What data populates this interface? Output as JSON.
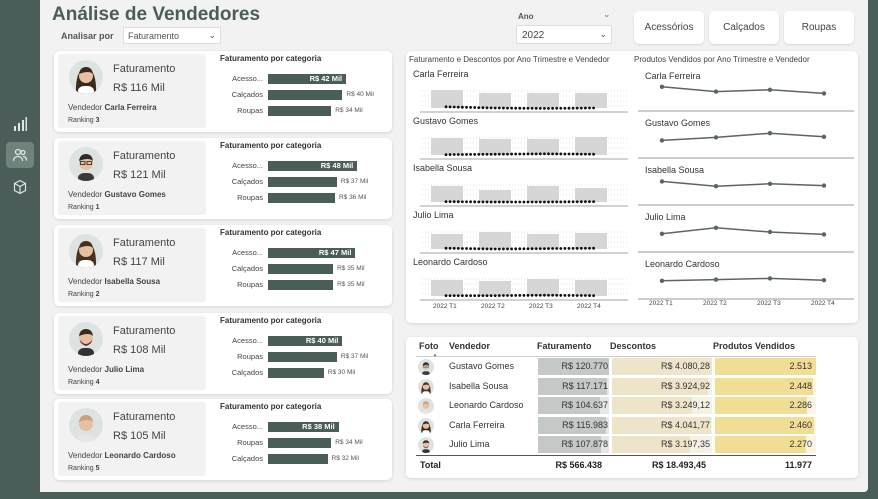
{
  "title": "Análise de Vendedores",
  "analisar_por": {
    "label": "Analisar por",
    "value": "Faturamento"
  },
  "ano": {
    "label": "Ano",
    "value": "2022"
  },
  "category_buttons": [
    "Acessórios",
    "Calçados",
    "Roupas"
  ],
  "colors": {
    "primary": "#4a5d58",
    "background": "#f2f2f2",
    "desc_bar": "#ede4c9",
    "prod_bar": "#f2dd95",
    "fat_bar": "#c4c8c6"
  },
  "sidebar_icons": [
    "bar-chart-icon",
    "users-icon",
    "cube-icon"
  ],
  "card_labels": {
    "faturamento": "Faturamento",
    "vendedor": "Vendedor",
    "ranking": "Ranking",
    "categoria_title": "Faturamento por categoria"
  },
  "cards": [
    {
      "name": "Carla Ferreira",
      "value": "R$ 116 Mil",
      "ranking": "3",
      "categories": [
        {
          "label": "Acesso...",
          "value": "R$ 42 Mil",
          "num": 42
        },
        {
          "label": "Calçados",
          "value": "R$ 40 Mil",
          "num": 40
        },
        {
          "label": "Roupas",
          "value": "R$ 34 Mil",
          "num": 34
        }
      ]
    },
    {
      "name": "Gustavo Gomes",
      "value": "R$ 121 Mil",
      "ranking": "1",
      "categories": [
        {
          "label": "Acesso...",
          "value": "R$ 48 Mil",
          "num": 48
        },
        {
          "label": "Calçados",
          "value": "R$ 37 Mil",
          "num": 37
        },
        {
          "label": "Roupas",
          "value": "R$ 36 Mil",
          "num": 36
        }
      ]
    },
    {
      "name": "Isabella Sousa",
      "value": "R$ 117 Mil",
      "ranking": "2",
      "categories": [
        {
          "label": "Acesso...",
          "value": "R$ 47 Mil",
          "num": 47
        },
        {
          "label": "Calçados",
          "value": "R$ 35 Mil",
          "num": 35
        },
        {
          "label": "Roupas",
          "value": "R$ 35 Mil",
          "num": 35
        }
      ]
    },
    {
      "name": "Julio Lima",
      "value": "R$ 108 Mil",
      "ranking": "4",
      "categories": [
        {
          "label": "Acesso...",
          "value": "R$ 40 Mil",
          "num": 40
        },
        {
          "label": "Roupas",
          "value": "R$ 37 Mil",
          "num": 37
        },
        {
          "label": "Calçados",
          "value": "R$ 30 Mil",
          "num": 30
        }
      ]
    },
    {
      "name": "Leonardo Cardoso",
      "value": "R$ 105 Mil",
      "ranking": "5",
      "categories": [
        {
          "label": "Acesso...",
          "value": "R$ 38 Mil",
          "num": 38
        },
        {
          "label": "Roupas",
          "value": "R$ 34 Mil",
          "num": 34
        },
        {
          "label": "Calçados",
          "value": "R$ 32 Mil",
          "num": 32
        }
      ]
    }
  ],
  "chart_data": [
    {
      "type": "bar",
      "title": "Faturamento e Descontos por Ano Trimestre e Vendedor",
      "categories": [
        "2022 T1",
        "2022 T2",
        "2022 T3",
        "2022 T4"
      ],
      "panels": [
        "Carla Ferreira",
        "Gustavo Gomes",
        "Isabella Sousa",
        "Julio Lima",
        "Leonardo Cardoso"
      ],
      "series": [
        {
          "values": [
            [
              0.9,
              0.75,
              0.75,
              0.75
            ],
            [
              0.85,
              0.8,
              0.8,
              0.9
            ],
            [
              0.8,
              0.6,
              0.8,
              0.7
            ],
            [
              0.75,
              0.85,
              0.75,
              0.8
            ],
            [
              0.8,
              0.75,
              0.85,
              0.8
            ]
          ]
        },
        {
          "values": [
            [
              0.18,
              0.15,
              0.14,
              0.15
            ],
            [
              0.16,
              0.17,
              0.18,
              0.17
            ],
            [
              0.16,
              0.15,
              0.15,
              0.16
            ],
            [
              0.17,
              0.15,
              0.16,
              0.17
            ],
            [
              0.16,
              0.16,
              0.17,
              0.16
            ]
          ]
        }
      ],
      "ylim": [
        0,
        1
      ]
    },
    {
      "type": "line",
      "title": "Produtos Vendidos por Ano Trimestre e Vendedor",
      "categories": [
        "2022 T1",
        "2022 T2",
        "2022 T3",
        "2022 T4"
      ],
      "panels": [
        "Carla Ferreira",
        "Gustavo Gomes",
        "Isabella Sousa",
        "Julio Lima",
        "Leonardo Cardoso"
      ],
      "series": [
        {
          "values": [
            [
              0.85,
              0.45,
              0.6,
              0.3
            ],
            [
              0.3,
              0.55,
              0.9,
              0.6
            ],
            [
              0.8,
              0.4,
              0.6,
              0.45
            ],
            [
              0.35,
              0.85,
              0.5,
              0.3
            ],
            [
              0.35,
              0.45,
              0.55,
              0.4
            ]
          ]
        }
      ],
      "ylim": [
        0,
        1
      ]
    }
  ],
  "table": {
    "headers": {
      "foto": "Foto",
      "vendedor": "Vendedor",
      "faturamento": "Faturamento",
      "descontos": "Descontos",
      "produtos": "Produtos Vendidos"
    },
    "rows": [
      {
        "name": "Gustavo Gomes",
        "fat": "R$ 120.770",
        "fat_num": 120770,
        "desc": "R$ 4.080,28",
        "desc_num": 4080.28,
        "prod": "2.513",
        "prod_num": 2513
      },
      {
        "name": "Isabella Sousa",
        "fat": "R$ 117.171",
        "fat_num": 117171,
        "desc": "R$ 3.924,92",
        "desc_num": 3924.92,
        "prod": "2.448",
        "prod_num": 2448
      },
      {
        "name": "Leonardo Cardoso",
        "fat": "R$ 104.637",
        "fat_num": 104637,
        "desc": "R$ 3.249,12",
        "desc_num": 3249.12,
        "prod": "2.286",
        "prod_num": 2286
      },
      {
        "name": "Carla Ferreira",
        "fat": "R$ 115.983",
        "fat_num": 115983,
        "desc": "R$ 4.041,77",
        "desc_num": 4041.77,
        "prod": "2.460",
        "prod_num": 2460
      },
      {
        "name": "Julio Lima",
        "fat": "R$ 107.878",
        "fat_num": 107878,
        "desc": "R$ 3.197,35",
        "desc_num": 3197.35,
        "prod": "2.270",
        "prod_num": 2270
      }
    ],
    "total": {
      "label": "Total",
      "fat": "R$ 566.438",
      "desc": "R$ 18.493,45",
      "prod": "11.977"
    }
  }
}
